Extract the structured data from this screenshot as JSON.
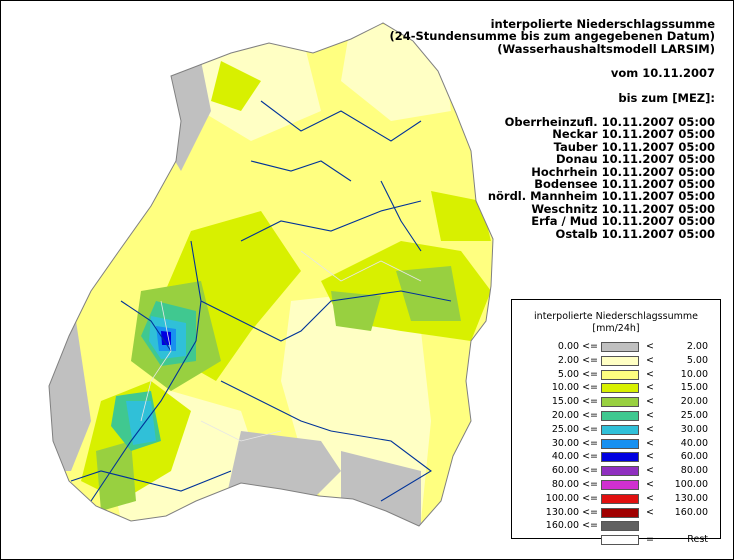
{
  "title_lines": [
    "interpolierte Niederschlagssumme",
    "(24-Stundensumme bis zum angegebenen Datum)",
    "(Wasserhaushaltsmodell LARSIM)"
  ],
  "date_line": "vom 10.11.2007",
  "until_line": "bis zum [MEZ]:",
  "regions": [
    {
      "name": "Oberrheinzufl.",
      "time": "10.11.2007 05:00"
    },
    {
      "name": "Neckar",
      "time": "10.11.2007 05:00"
    },
    {
      "name": "Tauber",
      "time": "10.11.2007 05:00"
    },
    {
      "name": "Donau",
      "time": "10.11.2007 05:00"
    },
    {
      "name": "Hochrhein",
      "time": "10.11.2007 05:00"
    },
    {
      "name": "Bodensee",
      "time": "10.11.2007 05:00"
    },
    {
      "name": "nördl. Mannheim",
      "time": "10.11.2007 05:00"
    },
    {
      "name": "Weschnitz",
      "time": "10.11.2007 05:00"
    },
    {
      "name": "Erfa / Mud",
      "time": "10.11.2007 05:00"
    },
    {
      "name": "Ostalb",
      "time": "10.11.2007 05:00"
    }
  ],
  "legend": {
    "title": "interpolierte Niederschlagssumme",
    "unit": "[mm/24h]",
    "le_symbol": "<=",
    "lt_symbol": "<",
    "classes": [
      {
        "low": "0.00",
        "high": "2.00",
        "color": "#c0c0c0"
      },
      {
        "low": "2.00",
        "high": "5.00",
        "color": "#ffffc4"
      },
      {
        "low": "5.00",
        "high": "10.00",
        "color": "#ffff80"
      },
      {
        "low": "10.00",
        "high": "15.00",
        "color": "#d8f000"
      },
      {
        "low": "15.00",
        "high": "20.00",
        "color": "#98d040"
      },
      {
        "low": "20.00",
        "high": "25.00",
        "color": "#40c890"
      },
      {
        "low": "25.00",
        "high": "30.00",
        "color": "#30c0d8"
      },
      {
        "low": "30.00",
        "high": "40.00",
        "color": "#1890f0"
      },
      {
        "low": "40.00",
        "high": "60.00",
        "color": "#0000e0"
      },
      {
        "low": "60.00",
        "high": "80.00",
        "color": "#9030c0"
      },
      {
        "low": "80.00",
        "high": "100.00",
        "color": "#d030d0"
      },
      {
        "low": "100.00",
        "high": "130.00",
        "color": "#e01010"
      },
      {
        "low": "130.00",
        "high": "160.00",
        "color": "#a00000"
      },
      {
        "low": "160.00",
        "high": "",
        "color": "#606060"
      }
    ],
    "rest": {
      "symbol": "=",
      "label": "Rest",
      "color": "#ffffff"
    }
  }
}
